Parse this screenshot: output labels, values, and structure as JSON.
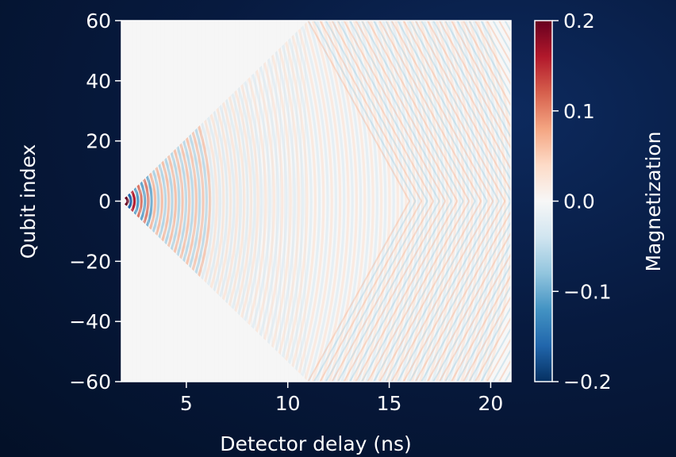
{
  "chart_data": {
    "type": "heatmap",
    "title": "",
    "xlabel": "Detector delay (ns)",
    "ylabel": "Qubit index",
    "xlim": [
      1.8,
      21
    ],
    "ylim": [
      -60,
      60
    ],
    "xticks": [
      5,
      10,
      15,
      20
    ],
    "yticks": [
      60,
      40,
      20,
      0,
      -20,
      -40,
      -60
    ],
    "ytick_labels": [
      "60",
      "40",
      "20",
      "0",
      "−20",
      "−40",
      "−60"
    ],
    "colorbar": {
      "label": "Magnetization",
      "colormap": "RdBu_r",
      "range": [
        -0.2,
        0.2
      ],
      "ticks": [
        0.2,
        0.1,
        0.0,
        -0.1,
        -0.2
      ],
      "tick_labels": [
        "0.2",
        "0.1",
        "0.0",
        "−0.1",
        "−0.2"
      ]
    },
    "features": {
      "light_cone_apex": {
        "x": 1.8,
        "y": 0
      },
      "light_cone_reaches_boundary_at_x": 11,
      "reflection_converges_at_x": 21,
      "pattern": "oscillating magnetization fringes spreading in a light cone from qubit 0, reflecting off the chain ends"
    },
    "colors": {
      "positive_max": "#67001f",
      "zero": "#f7f7f7",
      "negative_max": "#053061"
    }
  }
}
